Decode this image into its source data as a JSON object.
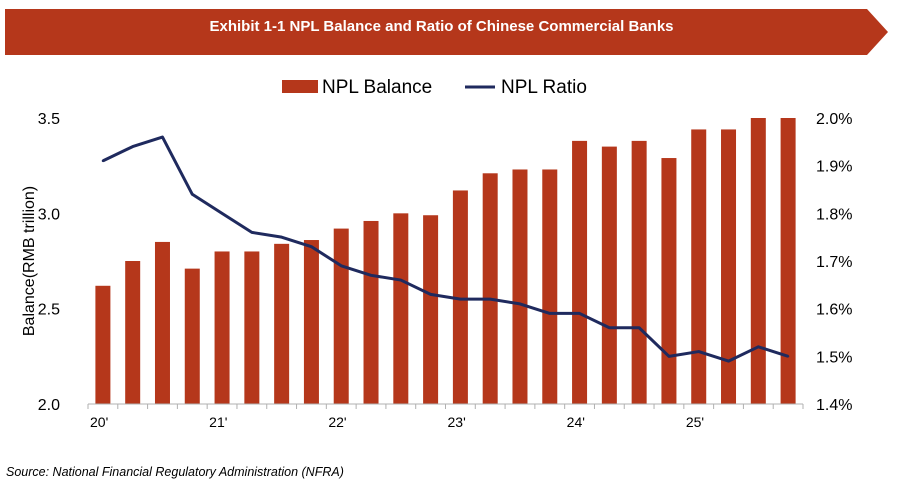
{
  "header": {
    "title": "Exhibit 1-1 NPL Balance and Ratio of Chinese Commercial Banks",
    "color": "#B5371B"
  },
  "footer": {
    "source": "Source: National Financial Regulatory Administration (NFRA)"
  },
  "chart_data": {
    "type": "bar",
    "title": "",
    "ylabel": "Balance(RMB trillion)",
    "ylabel_right": "",
    "ylim": [
      2.0,
      3.5
    ],
    "yticks": [
      "2.0",
      "2.5",
      "3.0",
      "3.5"
    ],
    "ylim_right": [
      0.014,
      0.02
    ],
    "yticks_right": [
      "1.4%",
      "1.5%",
      "1.6%",
      "1.7%",
      "1.8%",
      "1.9%",
      "2.0%"
    ],
    "x_tick_labels": [
      "20'",
      "21'",
      "22'",
      "23'",
      "24'",
      "25'"
    ],
    "legend_position": "top-center",
    "grid": false,
    "colors": {
      "bar": "#B5371B",
      "line": "#1F2A5E"
    },
    "series": [
      {
        "name": "NPL Balance",
        "type": "bar",
        "axis": "left",
        "values": [
          2.62,
          2.75,
          2.85,
          2.71,
          2.8,
          2.8,
          2.84,
          2.86,
          2.92,
          2.96,
          3.0,
          2.99,
          3.12,
          3.21,
          3.23,
          3.23,
          3.38,
          3.35,
          3.38,
          3.29,
          3.44,
          3.44,
          3.5,
          3.5
        ]
      },
      {
        "name": "NPL Ratio",
        "type": "line",
        "axis": "right",
        "values": [
          1.91,
          1.94,
          1.96,
          1.84,
          1.8,
          1.76,
          1.75,
          1.73,
          1.69,
          1.67,
          1.66,
          1.63,
          1.62,
          1.62,
          1.61,
          1.59,
          1.59,
          1.56,
          1.56,
          1.5,
          1.51,
          1.49,
          1.52,
          1.5
        ]
      }
    ]
  }
}
